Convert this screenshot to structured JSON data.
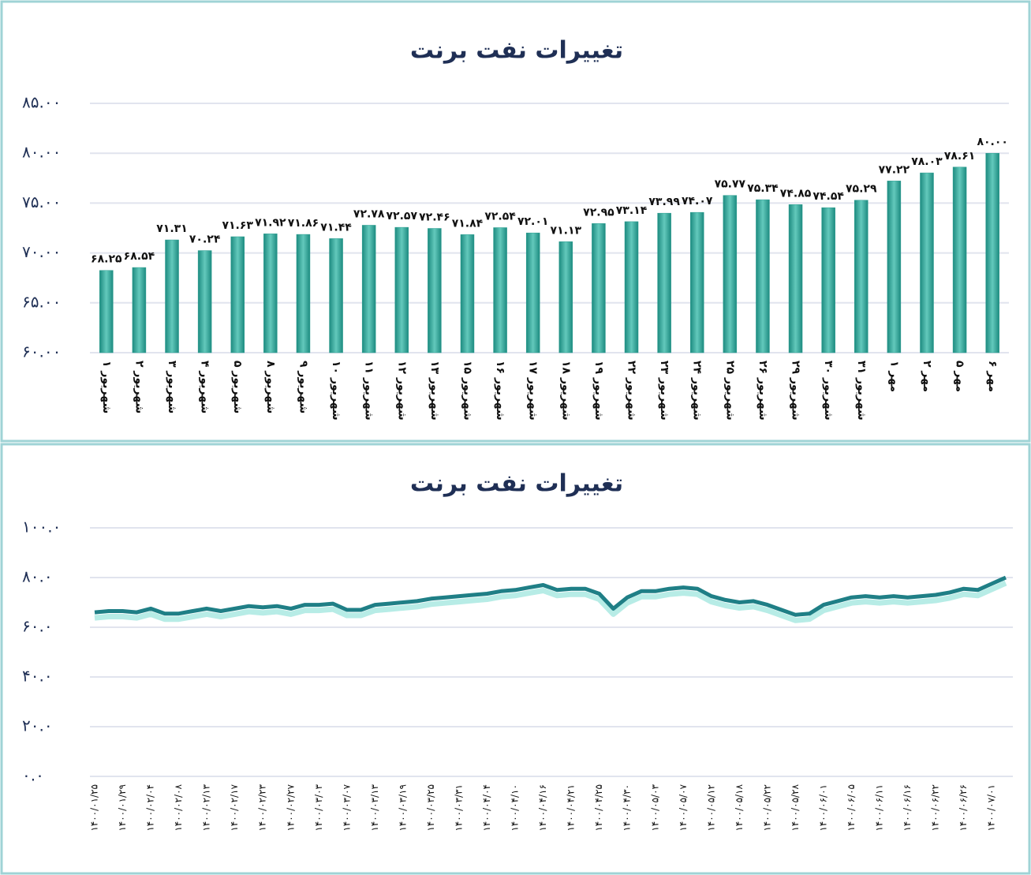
{
  "chart_data": [
    {
      "type": "bar",
      "title": "تغییرات نفت برنت",
      "categories": [
        "۱ شهریور",
        "۲ شهریور",
        "۳ شهریور",
        "۴ شهریور",
        "۵ شهریور",
        "۸ شهریور",
        "۹ شهریور",
        "۱۰ شهریور",
        "۱۱ شهریور",
        "۱۲ شهریور",
        "۱۳ شهریور",
        "۱۵ شهریور",
        "۱۶ شهریور",
        "۱۷ شهریور",
        "۱۸ شهریور",
        "۱۹ شهریور",
        "۲۲ شهریور",
        "۲۳ شهریور",
        "۲۴ شهریور",
        "۲۵ شهریور",
        "۲۶ شهریور",
        "۲۹ شهریور",
        "۳۰ شهریور",
        "۳۱ شهریور",
        "۱ مهر",
        "۲ مهر",
        "۵ مهر",
        "۶ مهر"
      ],
      "values": [
        68.25,
        68.54,
        71.31,
        70.24,
        71.63,
        71.92,
        71.86,
        71.44,
        72.78,
        72.57,
        72.46,
        71.84,
        72.54,
        72.01,
        71.13,
        72.95,
        73.14,
        73.99,
        74.07,
        75.77,
        75.34,
        74.85,
        74.54,
        75.29,
        77.22,
        78.03,
        78.61,
        80.0
      ],
      "value_labels": [
        "۶۸.۲۵",
        "۶۸.۵۴",
        "۷۱.۳۱",
        "۷۰.۲۴",
        "۷۱.۶۳",
        "۷۱.۹۲",
        "۷۱.۸۶",
        "۷۱.۴۴",
        "۷۲.۷۸",
        "۷۲.۵۷",
        "۷۲.۴۶",
        "۷۱.۸۴",
        "۷۲.۵۴",
        "۷۲.۰۱",
        "۷۱.۱۳",
        "۷۲.۹۵",
        "۷۳.۱۴",
        "۷۳.۹۹",
        "۷۴.۰۷",
        "۷۵.۷۷",
        "۷۵.۳۴",
        "۷۴.۸۵",
        "۷۴.۵۴",
        "۷۵.۲۹",
        "۷۷.۲۲",
        "۷۸.۰۳",
        "۷۸.۶۱",
        "۸۰.۰۰"
      ],
      "color": "#2a9d8f",
      "ylim": [
        60,
        85
      ],
      "yticks": [
        {
          "value": 60,
          "label": "۶۰.۰۰"
        },
        {
          "value": 65,
          "label": "۶۵.۰۰"
        },
        {
          "value": 70,
          "label": "۷۰.۰۰"
        },
        {
          "value": 75,
          "label": "۷۵.۰۰"
        },
        {
          "value": 80,
          "label": "۸۰.۰۰"
        },
        {
          "value": 85,
          "label": "۸۵.۰۰"
        }
      ],
      "grid": true
    },
    {
      "type": "line",
      "title": "تغییرات نفت برنت",
      "categories": [
        "۱۴۰۰/۰۱/۲۵",
        null,
        "۱۴۰۰/۰۱/۲۹",
        null,
        "۱۴۰۰/۰۲/۰۴",
        null,
        "۱۴۰۰/۰۲/۰۸",
        null,
        "۱۴۰۰/۰۲/۱۳",
        null,
        "۱۴۰۰/۰۲/۱۷",
        null,
        "۱۴۰۰/۰۲/۲۳",
        null,
        "۱۴۰۰/۰۲/۲۷",
        null,
        "۱۴۰۰/۰۳/۰۳",
        null,
        "۱۴۰۰/۰۳/۰۷",
        null,
        "۱۴۰۰/۰۳/۱۳",
        null,
        "۱۴۰۰/۰۳/۱۹",
        null,
        "۱۴۰۰/۰۳/۲۵",
        null,
        "۱۴۰۰/۰۳/۳۱",
        null,
        "۱۴۰۰/۰۴/۰۴",
        null,
        "۱۴۰۰/۰۴/۱۰",
        null,
        "۱۴۰۰/۰۴/۱۶",
        null,
        "۱۴۰۰/۰۴/۲۱",
        null,
        "۱۴۰۰/۰۴/۲۵",
        null,
        "۱۴۰۰/۰۴/۳۰",
        null,
        "۱۴۰۰/۰۵/۰۳",
        null,
        "۱۴۰۰/۰۵/۰۷",
        null,
        "۱۴۰۰/۰۵/۱۲",
        null,
        "۱۴۰۰/۰۵/۱۸",
        null,
        "۱۴۰۰/۰۵/۲۲",
        null,
        "۱۴۰۰/۰۵/۲۸",
        null,
        "۱۴۰۰/۰۶/۰۱",
        null,
        "۱۴۰۰/۰۶/۰۵",
        null,
        "۱۴۰۰/۰۶/۱۱",
        null,
        "۱۴۰۰/۰۶/۱۶",
        null,
        "۱۴۰۰/۰۶/۲۲",
        null,
        "۱۴۰۰/۰۶/۲۶",
        null,
        "۱۴۰۰/۰۷/۰۱",
        null
      ],
      "values": [
        66,
        66.5,
        66.5,
        66,
        67.5,
        65.5,
        65.5,
        66.5,
        67.5,
        66.5,
        67.5,
        68.5,
        68,
        68.5,
        67.5,
        69,
        69,
        69.5,
        67,
        67,
        69,
        69.5,
        70,
        70.5,
        71.5,
        72,
        72.5,
        73,
        73.5,
        74.5,
        75,
        76,
        77,
        75,
        75.5,
        75.5,
        73.5,
        67.5,
        72,
        74.5,
        74.5,
        75.5,
        76,
        75.5,
        72.5,
        71,
        70,
        70.5,
        69,
        67,
        65,
        65.5,
        69,
        70.5,
        72,
        72.5,
        72,
        72.5,
        72,
        72.5,
        73,
        74,
        75.5,
        75,
        77.5,
        80
      ],
      "color": "#1f7f86",
      "ylim": [
        0,
        100
      ],
      "yticks": [
        {
          "value": 0,
          "label": "۰.۰"
        },
        {
          "value": 20,
          "label": "۲۰.۰"
        },
        {
          "value": 40,
          "label": "۴۰.۰"
        },
        {
          "value": 60,
          "label": "۶۰.۰"
        },
        {
          "value": 80,
          "label": "۸۰.۰"
        },
        {
          "value": 100,
          "label": "۱۰۰.۰"
        }
      ],
      "grid": true
    }
  ]
}
